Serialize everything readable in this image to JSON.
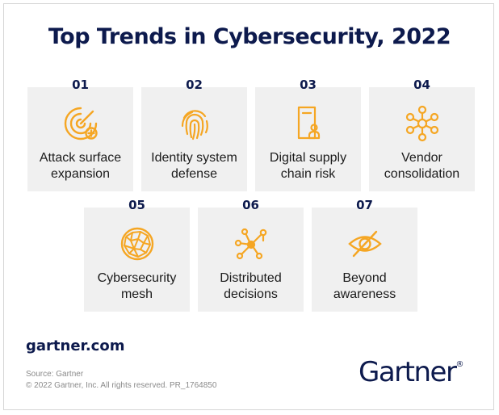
{
  "title": "Top Trends in Cybersecurity, 2022",
  "accent_color": "#f5a623",
  "navy_color": "#0d1a4d",
  "trends": [
    {
      "num": "01",
      "label": "Attack surface\nexpansion",
      "icon": "target-plus-icon"
    },
    {
      "num": "02",
      "label": "Identity system\ndefense",
      "icon": "fingerprint-icon"
    },
    {
      "num": "03",
      "label": "Digital supply\nchain risk",
      "icon": "door-user-icon"
    },
    {
      "num": "04",
      "label": "Vendor\nconsolidation",
      "icon": "network-hub-icon"
    },
    {
      "num": "05",
      "label": "Cybersecurity\nmesh",
      "icon": "mesh-globe-icon"
    },
    {
      "num": "06",
      "label": "Distributed\ndecisions",
      "icon": "distributed-nodes-icon"
    },
    {
      "num": "07",
      "label": "Beyond\nawareness",
      "icon": "eye-slash-icon"
    }
  ],
  "footer": {
    "site": "gartner.com",
    "source": "Source: Gartner",
    "copyright": "© 2022 Gartner, Inc. All rights reserved. PR_1764850",
    "logo": "Gartner",
    "logo_mark": "®"
  }
}
